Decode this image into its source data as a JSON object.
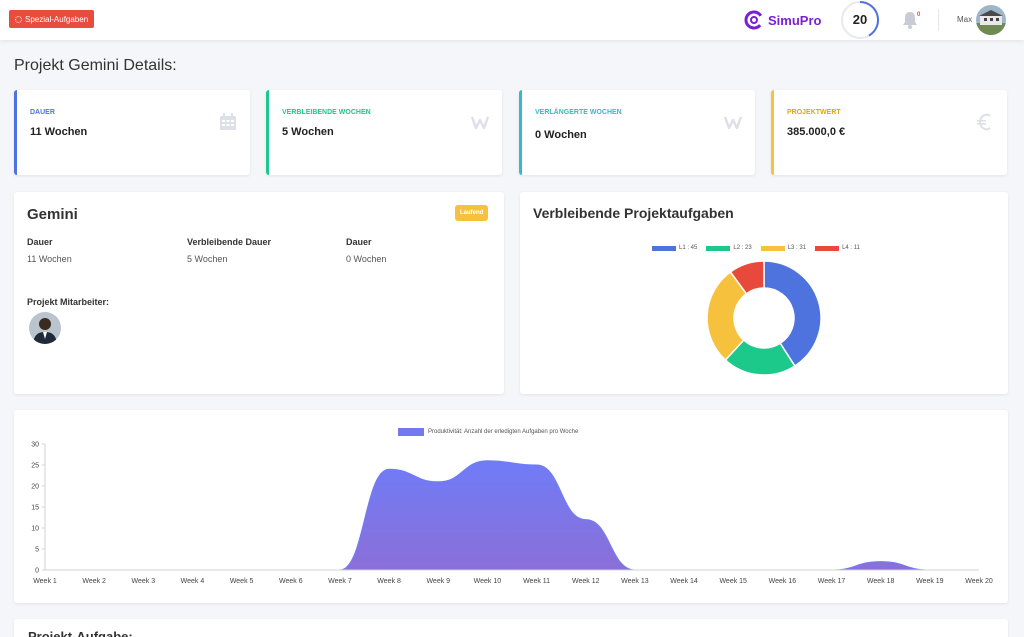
{
  "header": {
    "special_button": "Spezial-Aufgaben",
    "brand": "SimuPro",
    "score": "20",
    "notification_count": "0",
    "user_name": "Max",
    "icons": {
      "special": "spinner-icon",
      "brand": "simupro-logo",
      "notifications": "bell-icon",
      "user": "avatar"
    }
  },
  "page_title": "Projekt Gemini Details:",
  "stats": [
    {
      "label": "DAUER",
      "value": "11 Wochen",
      "color": "#4e73df",
      "icon": "calendar-icon"
    },
    {
      "label": "VERBLEIBENDE WOCHEN",
      "value": "5 Wochen",
      "color": "#1cc88a",
      "icon": "w-icon"
    },
    {
      "label": "VERLÄNGERTE WOCHEN",
      "value": "0 Wochen",
      "color": "#36b9cc",
      "icon": "w-icon"
    },
    {
      "label": "PROJEKTWERT",
      "value": "385.000,0 €",
      "color": "#f6c23e",
      "icon": "euro-icon"
    }
  ],
  "project": {
    "name": "Gemini",
    "status": "Laufend",
    "columns": [
      {
        "header": "Dauer",
        "value": "11 Wochen"
      },
      {
        "header": "Verbleibende Dauer",
        "value": "5 Wochen"
      },
      {
        "header": "Dauer",
        "value": "0 Wochen"
      }
    ],
    "employees_label": "Projekt Mitarbeiter:"
  },
  "tasks_chart": {
    "title": "Verbleibende Projektaufgaben",
    "legend": [
      "L1 : 45",
      "L2 : 23",
      "L3 : 31",
      "L4 : 11"
    ]
  },
  "productivity": {
    "legend": "Produktivität: Anzahl der erledigten Aufgaben pro Woche"
  },
  "bottom_section_title": "Projekt-Aufgabe:",
  "chart_data": [
    {
      "type": "pie",
      "title": "Verbleibende Projektaufgaben",
      "categories": [
        "L1",
        "L2",
        "L3",
        "L4"
      ],
      "values": [
        45,
        23,
        31,
        11
      ],
      "colors": [
        "#4e73df",
        "#1cc88a",
        "#f6c23e",
        "#e74a3b"
      ],
      "donut": true,
      "legend_position": "top"
    },
    {
      "type": "area",
      "categories": [
        "Week 1",
        "Week 2",
        "Week 3",
        "Week 4",
        "Week 5",
        "Week 6",
        "Week 7",
        "Week 8",
        "Week 9",
        "Week 10",
        "Week 11",
        "Week 12",
        "Week 13",
        "Week 14",
        "Week 15",
        "Week 16",
        "Week 17",
        "Week 18",
        "Week 19",
        "Week 20"
      ],
      "series": [
        {
          "name": "Produktivität: Anzahl der erledigten Aufgaben pro Woche",
          "values": [
            0,
            0,
            0,
            0,
            0,
            0,
            0,
            24,
            21,
            26,
            25,
            12,
            0,
            0,
            0,
            0,
            0,
            2,
            0,
            0
          ]
        }
      ],
      "ylim": [
        0,
        30
      ],
      "yticks": [
        0,
        5,
        10,
        15,
        20,
        25,
        30
      ],
      "grid": false,
      "legend_position": "top",
      "colors": {
        "top": "#6f7cf7",
        "bottom": "#8b6fd8"
      }
    }
  ]
}
